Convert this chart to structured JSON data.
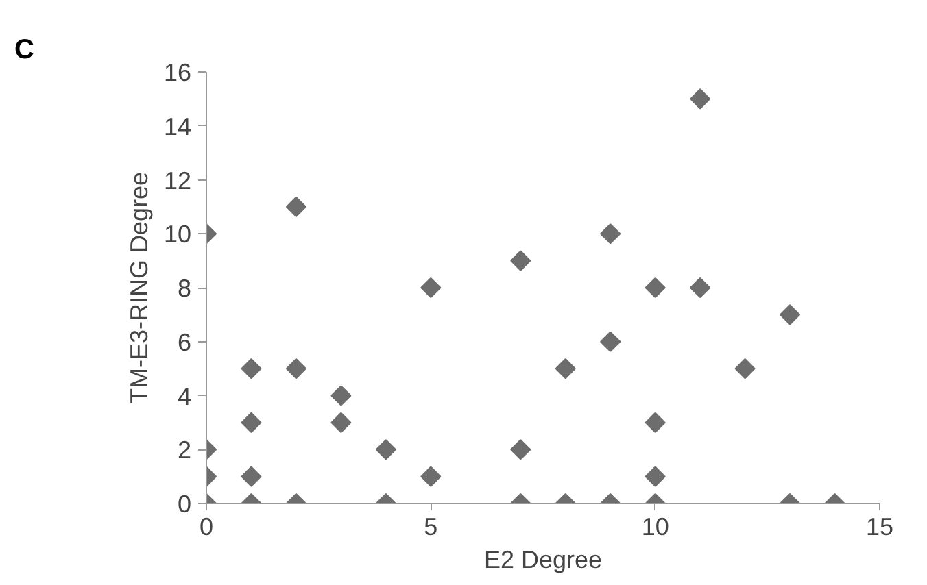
{
  "chart_data": {
    "type": "scatter",
    "xlabel": "E2 Degree",
    "ylabel": "TM-E3-RING Degree",
    "annotations": [
      "C"
    ],
    "x": [
      0,
      0,
      0,
      0,
      1,
      1,
      1,
      1,
      2,
      2,
      2,
      3,
      3,
      4,
      4,
      5,
      5,
      7,
      7,
      7,
      8,
      8,
      9,
      9,
      9,
      10,
      10,
      10,
      10,
      11,
      11,
      12,
      13,
      13,
      14
    ],
    "values": [
      10,
      2,
      1,
      0,
      5,
      3,
      1,
      0,
      11,
      5,
      0,
      4,
      3,
      2,
      0,
      8,
      1,
      9,
      2,
      0,
      5,
      0,
      10,
      6,
      0,
      8,
      3,
      1,
      0,
      15,
      8,
      5,
      7,
      0,
      0
    ],
    "color": "#6d6d6d",
    "marker": "diamond",
    "grid": false,
    "xlim": [
      0,
      15
    ],
    "ylim": [
      0,
      16
    ],
    "xticks": [
      0,
      5,
      10,
      15
    ],
    "yticks": [
      0,
      2,
      4,
      6,
      8,
      10,
      12,
      14,
      16
    ]
  }
}
